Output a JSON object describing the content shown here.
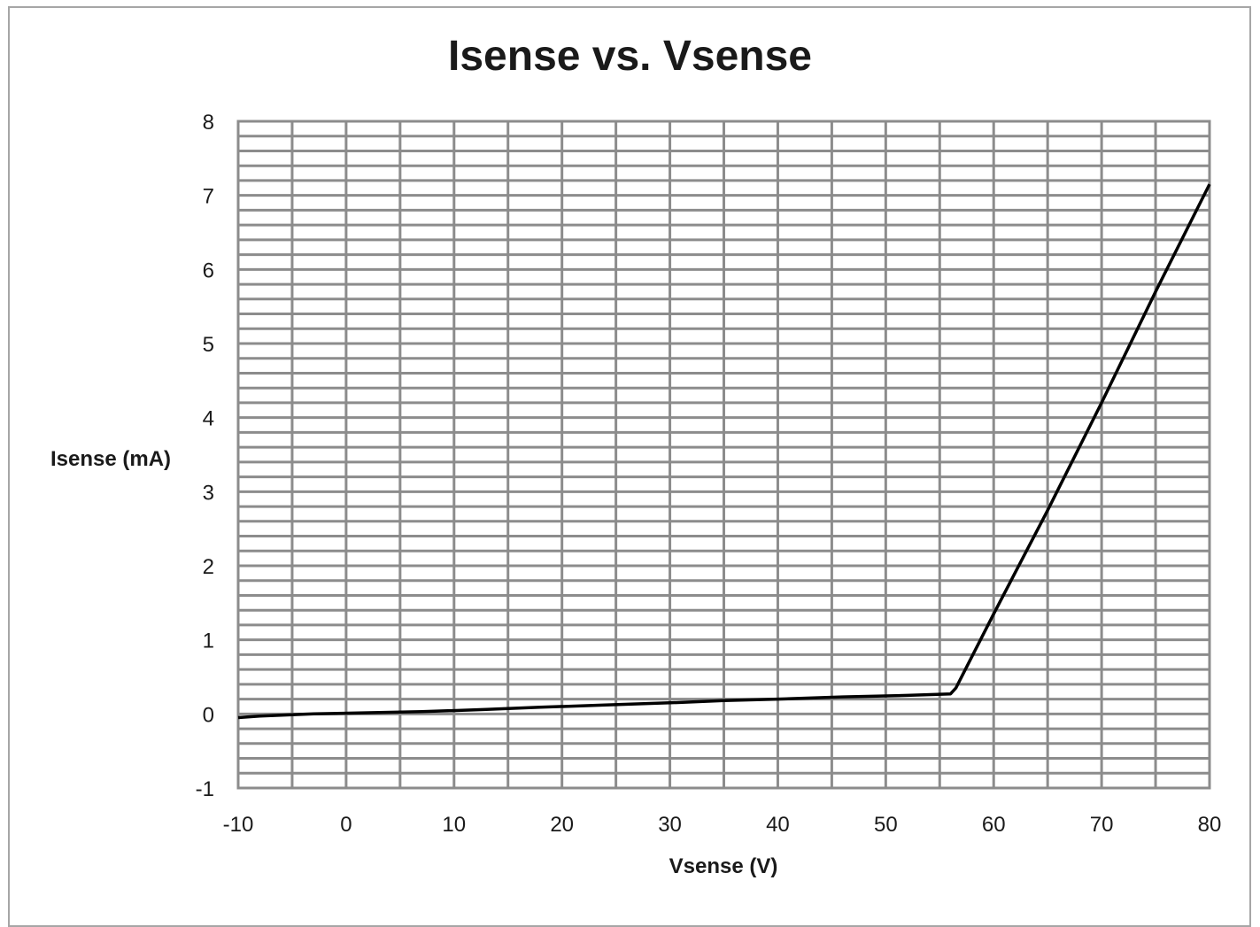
{
  "chart_data": {
    "type": "line",
    "title": "Isense vs. Vsense",
    "xlabel": "Vsense (V)",
    "ylabel": "Isense (mA)",
    "xlim": [
      -10,
      80
    ],
    "ylim": [
      -1,
      8
    ],
    "x_ticks": [
      "-10",
      "0",
      "10",
      "20",
      "30",
      "40",
      "50",
      "60",
      "70",
      "80"
    ],
    "y_ticks": [
      "-1",
      "0",
      "1",
      "2",
      "3",
      "4",
      "5",
      "6",
      "7",
      "8"
    ],
    "grid": true,
    "legend": "none",
    "series": [
      {
        "color": "#000000",
        "x": [
          -10,
          -8,
          -3,
          7,
          13,
          18,
          24,
          30,
          35,
          40,
          46,
          52,
          56,
          56.5,
          60,
          65,
          70,
          75,
          80
        ],
        "y": [
          -0.05,
          -0.03,
          0.0,
          0.03,
          0.06,
          0.09,
          0.12,
          0.15,
          0.18,
          0.2,
          0.23,
          0.25,
          0.27,
          0.35,
          1.35,
          2.75,
          4.2,
          5.7,
          7.15
        ]
      }
    ]
  }
}
